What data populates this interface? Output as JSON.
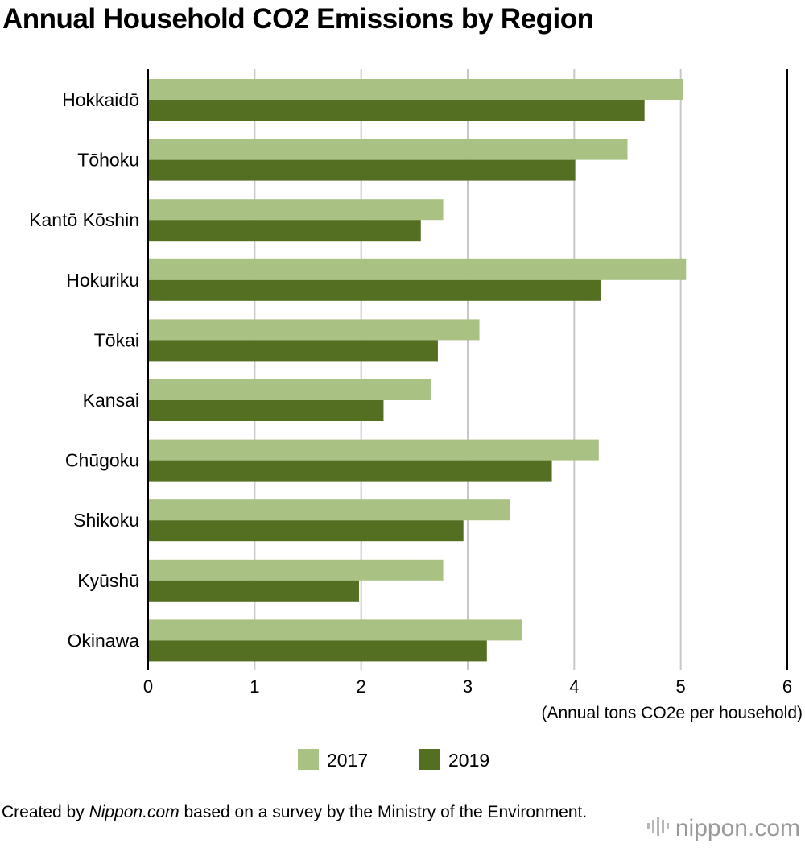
{
  "chart_data": {
    "type": "bar",
    "orientation": "horizontal",
    "title": "Annual Household CO2 Emissions by Region",
    "categories": [
      "Hokkaidō",
      "Tōhoku",
      "Kantō Kōshin",
      "Hokuriku",
      "Tōkai",
      "Kansai",
      "Chūgoku",
      "Shikoku",
      "Kyūshū",
      "Okinawa"
    ],
    "series": [
      {
        "name": "2017",
        "color": "#a9c284",
        "values": [
          5.02,
          4.5,
          2.77,
          5.05,
          3.11,
          2.66,
          4.23,
          3.4,
          2.77,
          3.51
        ]
      },
      {
        "name": "2019",
        "color": "#556f22",
        "values": [
          4.66,
          4.01,
          2.56,
          4.25,
          2.72,
          2.21,
          3.79,
          2.96,
          1.98,
          3.18
        ]
      }
    ],
    "xlabel": "(Annual tons CO2e per household)",
    "ylabel": "",
    "xlim": [
      0,
      6
    ],
    "xticks": [
      "0",
      "1",
      "2",
      "3",
      "4",
      "5",
      "6"
    ],
    "grid": true,
    "legend_position": "bottom-center"
  },
  "footer": {
    "prefix": "Created by ",
    "source": "Nippon.com",
    "suffix": " based on a survey by the Ministry of the Environment."
  },
  "logo": {
    "name": "nippon",
    "dot": ".",
    "tld": "com"
  }
}
